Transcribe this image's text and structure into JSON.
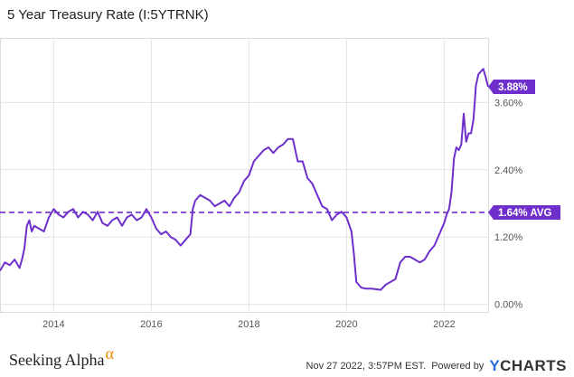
{
  "title": "5 Year Treasury Rate (I:5YTRNK)",
  "colors": {
    "line": "#6e2fcc",
    "badge": "#6e2fcc",
    "grid": "#e3e3e3",
    "accent": "#f08a00",
    "ycharts_blue": "#2a6ad9"
  },
  "footer": {
    "brand": "Seeking Alpha",
    "brand_symbol": "α",
    "timestamp": "Nov 27 2022, 3:57PM EST.",
    "powered_by": "Powered by",
    "ycharts_y": "Y",
    "ycharts_rest": "CHARTS"
  },
  "chart_data": {
    "type": "line",
    "title": "5 Year Treasury Rate (I:5YTRNK)",
    "xlabel": "",
    "ylabel": "",
    "x_ticks": [
      "2014",
      "2016",
      "2018",
      "2020",
      "2022"
    ],
    "y_ticks": [
      "0.00%",
      "1.20%",
      "2.40%",
      "3.60%"
    ],
    "xlim": [
      2012.9,
      2022.9
    ],
    "ylim": [
      -0.15,
      4.75
    ],
    "grid": true,
    "average": {
      "value": 1.64,
      "label": "1.64% AVG"
    },
    "last_value": {
      "value": 3.88,
      "label": "3.88%"
    },
    "series": [
      {
        "x": [
          2012.9,
          2013.0,
          2013.1,
          2013.2,
          2013.3,
          2013.35,
          2013.4,
          2013.45,
          2013.5,
          2013.55,
          2013.6,
          2013.7,
          2013.8,
          2013.9,
          2014.0,
          2014.1,
          2014.2,
          2014.3,
          2014.4,
          2014.5,
          2014.6,
          2014.7,
          2014.8,
          2014.9,
          2015.0,
          2015.1,
          2015.2,
          2015.3,
          2015.4,
          2015.5,
          2015.6,
          2015.7,
          2015.8,
          2015.9,
          2016.0,
          2016.1,
          2016.2,
          2016.3,
          2016.4,
          2016.5,
          2016.6,
          2016.7,
          2016.8,
          2016.85,
          2016.9,
          2017.0,
          2017.1,
          2017.2,
          2017.3,
          2017.4,
          2017.5,
          2017.6,
          2017.7,
          2017.8,
          2017.9,
          2018.0,
          2018.1,
          2018.2,
          2018.3,
          2018.4,
          2018.5,
          2018.6,
          2018.7,
          2018.8,
          2018.9,
          2019.0,
          2019.1,
          2019.2,
          2019.3,
          2019.4,
          2019.5,
          2019.6,
          2019.7,
          2019.8,
          2019.9,
          2020.0,
          2020.1,
          2020.15,
          2020.2,
          2020.25,
          2020.3,
          2020.4,
          2020.5,
          2020.6,
          2020.7,
          2020.8,
          2020.9,
          2021.0,
          2021.1,
          2021.2,
          2021.3,
          2021.4,
          2021.5,
          2021.6,
          2021.7,
          2021.8,
          2021.9,
          2022.0,
          2022.05,
          2022.1,
          2022.15,
          2022.2,
          2022.25,
          2022.3,
          2022.35,
          2022.4,
          2022.45,
          2022.5,
          2022.55,
          2022.6,
          2022.65,
          2022.7,
          2022.75,
          2022.8,
          2022.85,
          2022.9
        ],
        "values": [
          0.6,
          0.75,
          0.7,
          0.8,
          0.65,
          0.8,
          1.0,
          1.4,
          1.5,
          1.3,
          1.4,
          1.35,
          1.3,
          1.55,
          1.7,
          1.6,
          1.55,
          1.65,
          1.7,
          1.55,
          1.65,
          1.6,
          1.5,
          1.65,
          1.45,
          1.4,
          1.5,
          1.55,
          1.4,
          1.55,
          1.6,
          1.5,
          1.55,
          1.7,
          1.55,
          1.35,
          1.25,
          1.3,
          1.2,
          1.15,
          1.05,
          1.15,
          1.25,
          1.7,
          1.85,
          1.95,
          1.9,
          1.85,
          1.75,
          1.8,
          1.85,
          1.75,
          1.9,
          2.0,
          2.2,
          2.3,
          2.55,
          2.65,
          2.75,
          2.8,
          2.7,
          2.8,
          2.85,
          2.95,
          2.95,
          2.55,
          2.55,
          2.25,
          2.15,
          1.95,
          1.75,
          1.7,
          1.5,
          1.6,
          1.65,
          1.55,
          1.3,
          0.9,
          0.4,
          0.35,
          0.3,
          0.28,
          0.28,
          0.27,
          0.26,
          0.35,
          0.4,
          0.45,
          0.75,
          0.85,
          0.85,
          0.8,
          0.75,
          0.8,
          0.95,
          1.05,
          1.25,
          1.45,
          1.6,
          1.7,
          2.0,
          2.6,
          2.8,
          2.75,
          2.85,
          3.4,
          2.9,
          3.05,
          3.05,
          3.3,
          3.9,
          4.1,
          4.15,
          4.2,
          4.05,
          3.88
        ]
      }
    ]
  }
}
